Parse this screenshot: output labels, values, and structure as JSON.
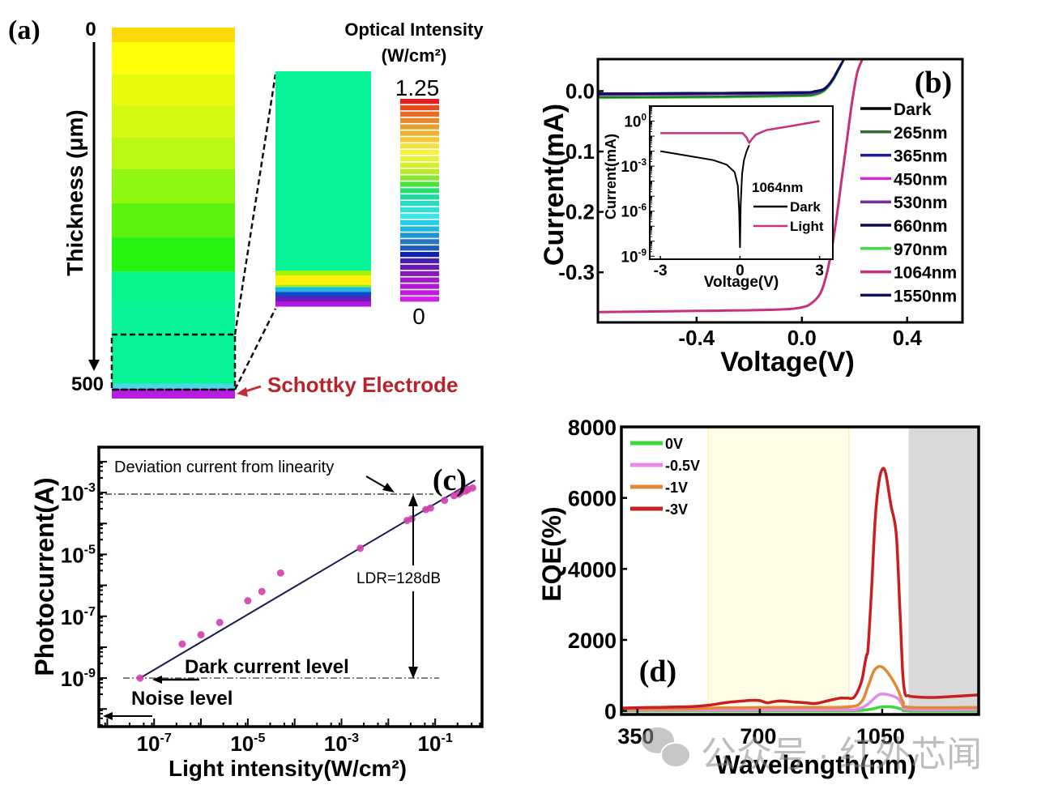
{
  "watermark": {
    "text": "公众号 · 红外芯闻",
    "icon": "wechat-icon"
  },
  "chart_data": [
    {
      "id": "a",
      "panel_label": "(a)",
      "type": "heatmap",
      "title": "Optical Intensity",
      "colorbar_unit": "(W/cm²)",
      "colorbar_range": [
        0,
        1.25
      ],
      "colorbar_ticks": [
        "1.25",
        "0"
      ],
      "ylabel": "Thickness (μm)",
      "y_ticks": [
        "0",
        "500"
      ],
      "ylim": [
        0,
        500
      ],
      "annotation": "Schottky  Electrode",
      "layers_main": [
        {
          "depth_from": 0,
          "depth_to": 30,
          "color": "#ffd90a"
        },
        {
          "depth_from": 30,
          "depth_to": 95,
          "color": "#ffff05"
        },
        {
          "depth_from": 95,
          "depth_to": 160,
          "color": "#e9fb0c"
        },
        {
          "depth_from": 160,
          "depth_to": 225,
          "color": "#d3fa10"
        },
        {
          "depth_from": 225,
          "depth_to": 290,
          "color": "#b8f812"
        },
        {
          "depth_from": 290,
          "depth_to": 360,
          "color": "#8ff70f"
        },
        {
          "depth_from": 360,
          "depth_to": 430,
          "color": "#5cf40e"
        },
        {
          "depth_from": 430,
          "depth_to": 500,
          "color": "#25f20f"
        },
        {
          "depth_from": 500,
          "depth_to": 560,
          "color": "#06f48c"
        },
        {
          "depth_from": 560,
          "depth_to": 730,
          "color": "#06f496"
        },
        {
          "depth_from": 730,
          "depth_to": 740,
          "color": "#4cd6e8"
        },
        {
          "depth_from": 740,
          "depth_to": 760,
          "color": "#b71fe0"
        }
      ],
      "layers_zoom": [
        {
          "color": "#06f496",
          "share": 0.84
        },
        {
          "color": "#a6f40c",
          "share": 0.02
        },
        {
          "color": "#fff20a",
          "share": 0.04
        },
        {
          "color": "#8ff02a",
          "share": 0.01
        },
        {
          "color": "#22b8e6",
          "share": 0.02
        },
        {
          "color": "#1148c8",
          "share": 0.02
        },
        {
          "color": "#6a1ab8",
          "share": 0.02
        },
        {
          "color": "#b019e0",
          "share": 0.02
        }
      ],
      "colorbar_colors": [
        "#e02020",
        "#e84a1e",
        "#ea6a22",
        "#e48a2c",
        "#e2a030",
        "#eab42c",
        "#f2c630",
        "#f5e040",
        "#f6f13a",
        "#e8f23a",
        "#d6f028",
        "#b8ec24",
        "#86e830",
        "#48e63a",
        "#22e070",
        "#1ed8a2",
        "#28dcc0",
        "#34e0d6",
        "#3ce6e8",
        "#26cce8",
        "#1eb4e4",
        "#1e94d8",
        "#2278c6",
        "#1e5cbc",
        "#1020b0",
        "#4820b0",
        "#6a1ab6",
        "#8818bc",
        "#a018c8",
        "#b018d6",
        "#c01ce0",
        "#d022e6"
      ]
    },
    {
      "id": "b",
      "panel_label": "(b)",
      "type": "line",
      "xlabel": "Voltage(V)",
      "ylabel": "Current(mA)",
      "xlim": [
        -0.775,
        0.61
      ],
      "ylim": [
        -0.383,
        0.053
      ],
      "x_ticks": [
        -0.4,
        0.0,
        0.4
      ],
      "x_tick_labels": [
        "-0.4",
        "0.0",
        "0.4"
      ],
      "y_ticks": [
        0.0,
        -0.1,
        -0.2,
        -0.3
      ],
      "y_tick_labels": [
        "0.0",
        "-0.1",
        "-0.2",
        "-0.3"
      ],
      "legend_position": "right",
      "series": [
        {
          "name": "Dark",
          "color": "#000000",
          "x": [
            -0.775,
            -0.3,
            0.0,
            0.05,
            0.08,
            0.1,
            0.12,
            0.14,
            0.16
          ],
          "y": [
            -0.004,
            -0.003,
            -0.002,
            0.0,
            0.003,
            0.01,
            0.022,
            0.038,
            0.053
          ]
        },
        {
          "name": "265nm",
          "color": "#2e6e2e",
          "x": [
            -0.775,
            -0.3,
            0.0,
            0.05,
            0.08,
            0.1,
            0.12,
            0.14,
            0.16
          ],
          "y": [
            -0.01,
            -0.009,
            -0.007,
            -0.005,
            0.0,
            0.008,
            0.02,
            0.036,
            0.053
          ]
        },
        {
          "name": "365nm",
          "color": "#1a1aa0",
          "x": [
            -0.775,
            -0.3,
            0.0,
            0.05,
            0.08,
            0.1,
            0.12,
            0.14,
            0.16
          ],
          "y": [
            -0.005,
            -0.004,
            -0.003,
            -0.001,
            0.002,
            0.009,
            0.021,
            0.037,
            0.053
          ]
        },
        {
          "name": "450nm",
          "color": "#d030c8",
          "x": [
            -0.775,
            -0.3,
            0.0,
            0.05,
            0.08,
            0.1,
            0.12,
            0.14,
            0.16
          ],
          "y": [
            -0.006,
            -0.005,
            -0.004,
            -0.002,
            0.002,
            0.009,
            0.021,
            0.037,
            0.053
          ]
        },
        {
          "name": "530nm",
          "color": "#7a2aa8",
          "x": [
            -0.775,
            -0.3,
            0.0,
            0.05,
            0.08,
            0.1,
            0.12,
            0.14,
            0.16
          ],
          "y": [
            -0.006,
            -0.005,
            -0.004,
            -0.002,
            0.002,
            0.009,
            0.021,
            0.037,
            0.053
          ]
        },
        {
          "name": "660nm",
          "color": "#0a0a50",
          "x": [
            -0.775,
            -0.3,
            0.0,
            0.05,
            0.08,
            0.1,
            0.12,
            0.14,
            0.16
          ],
          "y": [
            -0.004,
            -0.003,
            -0.002,
            0.0,
            0.003,
            0.01,
            0.022,
            0.038,
            0.053
          ]
        },
        {
          "name": "970nm",
          "color": "#3ee03e",
          "x": [
            -0.775,
            -0.3,
            0.0,
            0.05,
            0.08,
            0.1,
            0.12,
            0.14,
            0.16
          ],
          "y": [
            -0.011,
            -0.01,
            -0.008,
            -0.006,
            -0.001,
            0.007,
            0.019,
            0.036,
            0.053
          ]
        },
        {
          "name": "1064nm",
          "color": "#c8307e",
          "x": [
            -0.775,
            -0.4,
            -0.1,
            0.0,
            0.04,
            0.07,
            0.09,
            0.11,
            0.13,
            0.15,
            0.17,
            0.19,
            0.21,
            0.23
          ],
          "y": [
            -0.366,
            -0.364,
            -0.362,
            -0.358,
            -0.35,
            -0.335,
            -0.31,
            -0.27,
            -0.215,
            -0.15,
            -0.085,
            -0.02,
            0.03,
            0.053
          ]
        },
        {
          "name": "1550nm",
          "color": "#10105e",
          "x": [
            -0.775,
            -0.3,
            0.0,
            0.05,
            0.08,
            0.1,
            0.12,
            0.14,
            0.16
          ],
          "y": [
            -0.004,
            -0.003,
            -0.002,
            0.0,
            0.003,
            0.01,
            0.022,
            0.038,
            0.053
          ]
        }
      ],
      "inset": {
        "type": "line",
        "yscale": "log",
        "xlabel": "Voltage(V)",
        "ylabel": "Current(mA)",
        "xlim": [
          -3.4,
          3.5
        ],
        "ylim_log10": [
          -9.2,
          1.0
        ],
        "x_ticks": [
          -3,
          0,
          3
        ],
        "x_tick_labels": [
          "-3",
          "0",
          "3"
        ],
        "y_ticks_log10": [
          0,
          -3,
          -6,
          -9
        ],
        "y_tick_labels": [
          "10^0",
          "10^-3",
          "10^-6",
          "10^-9"
        ],
        "legend_title": "1064nm",
        "series": [
          {
            "name": "Dark",
            "color": "#000000",
            "x": [
              -3,
              -2,
              -1,
              -0.5,
              -0.2,
              -0.08,
              -0.03,
              0.0,
              0.03,
              0.08,
              0.15,
              0.25,
              0.35
            ],
            "log10y": [
              -2.0,
              -2.3,
              -2.6,
              -2.9,
              -3.4,
              -4.3,
              -6.0,
              -8.4,
              -5.5,
              -3.5,
              -2.6,
              -2.0,
              -1.6
            ]
          },
          {
            "name": "Light",
            "color": "#c8307e",
            "x": [
              -3,
              -1,
              0.1,
              0.25,
              0.35,
              0.45,
              0.6,
              1.0,
              2.0,
              3.0
            ],
            "log10y": [
              -0.8,
              -0.8,
              -0.8,
              -1.1,
              -1.45,
              -1.2,
              -0.9,
              -0.6,
              -0.3,
              0.0
            ]
          }
        ]
      }
    },
    {
      "id": "c",
      "panel_label": "(c)",
      "type": "scatter",
      "xscale": "log",
      "yscale": "log",
      "xlabel": "Light intensity(W/cm²)",
      "ylabel": "Photocurrent(A)",
      "xlim_log10": [
        -8.18,
        0.0
      ],
      "ylim_log10": [
        -10.57,
        -1.53
      ],
      "x_ticks_log10": [
        -7,
        -5,
        -3,
        -1
      ],
      "x_tick_labels": [
        "10^-7",
        "10^-5",
        "10^-3",
        "10^-1"
      ],
      "y_ticks_log10": [
        -3,
        -5,
        -7,
        -9
      ],
      "y_tick_labels": [
        "10^-3",
        "10^-5",
        "10^-7",
        "10^-9"
      ],
      "points_log10": [
        [
          -7.3,
          -9.0
        ],
        [
          -6.4,
          -7.9
        ],
        [
          -6.0,
          -7.6
        ],
        [
          -5.6,
          -7.2
        ],
        [
          -5.0,
          -6.5
        ],
        [
          -4.7,
          -6.2
        ],
        [
          -4.3,
          -5.6
        ],
        [
          -2.6,
          -4.8
        ],
        [
          -1.6,
          -3.9
        ],
        [
          -1.5,
          -3.85
        ],
        [
          -1.2,
          -3.55
        ],
        [
          -1.1,
          -3.5
        ],
        [
          -0.8,
          -3.25
        ],
        [
          -0.6,
          -3.1
        ],
        [
          -0.5,
          -3.05
        ],
        [
          -0.45,
          -3.0
        ],
        [
          -0.35,
          -2.95
        ],
        [
          -0.3,
          -2.9
        ],
        [
          -0.2,
          -2.85
        ]
      ],
      "fit_line_log10": [
        [
          -7.3,
          -9.0
        ],
        [
          -0.15,
          -2.6
        ]
      ],
      "point_color": "#d040b0",
      "fit_color": "#1a1a50",
      "annotations": {
        "deviation": "Deviation current from linearity",
        "ldr": "LDR=128dB",
        "dark": "Dark current level",
        "noise": "Noise level"
      },
      "ref_lines_log10": [
        -3.05,
        -9.0
      ]
    },
    {
      "id": "d",
      "panel_label": "(d)",
      "type": "line",
      "xlabel": "Wavelength(nm)",
      "ylabel": "EQE(%)",
      "xlim": [
        304,
        1326
      ],
      "ylim": [
        -100,
        8000
      ],
      "x_ticks": [
        350,
        700,
        1050
      ],
      "x_tick_labels": [
        "350",
        "700",
        "1050"
      ],
      "y_ticks": [
        0,
        2000,
        4000,
        6000,
        8000
      ],
      "y_tick_labels": [
        "0",
        "2000",
        "4000",
        "6000",
        "8000"
      ],
      "legend_position": "top-left",
      "shaded_regions": [
        {
          "from": 552,
          "to": 955,
          "color": "#fffde6",
          "edge": "#f0ec98"
        },
        {
          "from": 1127,
          "to": 1326,
          "color": "#d9d9d9",
          "edge": "#d9d9d9"
        }
      ],
      "series": [
        {
          "name": "0V",
          "color": "#3ed83e",
          "x": [
            304,
            900,
            980,
            1020,
            1045,
            1070,
            1095,
            1110,
            1130,
            1326
          ],
          "y": [
            0,
            0,
            10,
            50,
            110,
            120,
            80,
            30,
            0,
            0
          ]
        },
        {
          "name": "-0.5V",
          "color": "#e68ae8",
          "x": [
            304,
            900,
            980,
            1010,
            1030,
            1045,
            1070,
            1095,
            1110,
            1130,
            1326
          ],
          "y": [
            20,
            30,
            60,
            200,
            380,
            470,
            450,
            350,
            150,
            40,
            40
          ]
        },
        {
          "name": "-1V",
          "color": "#e08a36",
          "x": [
            304,
            500,
            600,
            800,
            950,
            990,
            1010,
            1025,
            1040,
            1055,
            1075,
            1095,
            1110,
            1130,
            1326
          ],
          "y": [
            50,
            60,
            90,
            100,
            110,
            250,
            700,
            1100,
            1250,
            1200,
            950,
            600,
            250,
            100,
            100
          ]
        },
        {
          "name": "-3V",
          "color": "#c82020",
          "x": [
            304,
            400,
            500,
            560,
            600,
            640,
            680,
            700,
            720,
            740,
            760,
            800,
            830,
            860,
            900,
            930,
            950,
            970,
            990,
            1000,
            1005,
            1010,
            1020,
            1030,
            1040,
            1050,
            1060,
            1075,
            1090,
            1100,
            1108,
            1115,
            1125,
            1140,
            1200,
            1326
          ],
          "y": [
            80,
            100,
            120,
            170,
            230,
            270,
            300,
            290,
            230,
            260,
            280,
            250,
            230,
            210,
            300,
            360,
            360,
            390,
            800,
            1300,
            1560,
            1800,
            3500,
            5400,
            6400,
            6800,
            6700,
            5800,
            5000,
            3000,
            1200,
            500,
            430,
            400,
            380,
            450
          ]
        }
      ]
    }
  ]
}
